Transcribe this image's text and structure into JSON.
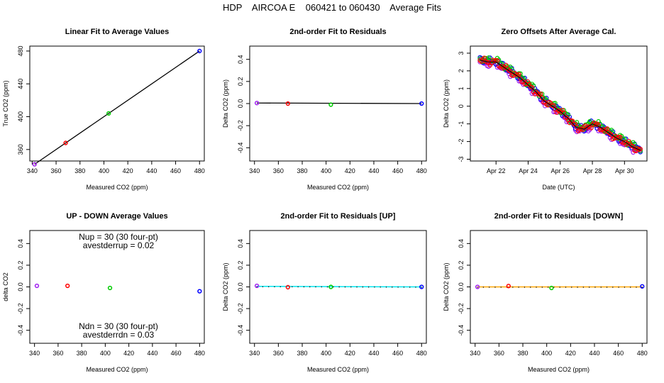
{
  "main_title": "HDP    AIRCOA E    060421 to 060430    Average Fits",
  "colors": {
    "purple": "#a020f0",
    "red": "#ff0000",
    "green": "#00cc00",
    "blue": "#0000ff",
    "black": "#000000",
    "cyan": "#00e5ee",
    "orange": "#ffa500"
  },
  "chart_data": [
    {
      "id": "p1",
      "type": "scatter",
      "title": "Linear Fit to Average Values",
      "xlabel": "Measured CO2 (ppm)",
      "ylabel": "True CO2 (ppm)",
      "xlim": [
        338,
        484
      ],
      "ylim": [
        346,
        486
      ],
      "xticks": [
        340,
        360,
        380,
        400,
        420,
        440,
        460,
        480
      ],
      "yticks": [
        360,
        400,
        440,
        480
      ],
      "points": [
        {
          "x": 342,
          "y": 342,
          "color": "purple"
        },
        {
          "x": 368,
          "y": 368,
          "color": "red"
        },
        {
          "x": 404,
          "y": 404,
          "color": "green"
        },
        {
          "x": 480,
          "y": 480,
          "color": "blue"
        }
      ],
      "fit_line": {
        "x": [
          342,
          480
        ],
        "y": [
          342,
          480
        ],
        "color": "black"
      }
    },
    {
      "id": "p2",
      "type": "scatter",
      "title": "2nd-order Fit to Residuals",
      "xlabel": "Measured CO2 (ppm)",
      "ylabel": "Delta CO2 (ppm)",
      "xlim": [
        336,
        484
      ],
      "ylim": [
        -0.52,
        0.52
      ],
      "xticks": [
        340,
        360,
        380,
        400,
        420,
        440,
        460,
        480
      ],
      "yticks": [
        -0.4,
        -0.2,
        0.0,
        0.2,
        0.4
      ],
      "points": [
        {
          "x": 342,
          "y": 0.005,
          "color": "purple"
        },
        {
          "x": 368,
          "y": 0.0,
          "color": "red"
        },
        {
          "x": 404,
          "y": -0.01,
          "color": "green"
        },
        {
          "x": 480,
          "y": 0.0,
          "color": "blue"
        }
      ],
      "fit_line": {
        "x": [
          342,
          480
        ],
        "y": [
          0.005,
          0.0
        ],
        "color": "black"
      }
    },
    {
      "id": "p3",
      "type": "scatter",
      "title": "Zero Offsets After Average Cal.",
      "xlabel": "Date (UTC)",
      "ylabel": "Delta CO2 (ppm)",
      "xlim": [
        20.4,
        31.4
      ],
      "ylim": [
        -3.1,
        3.4
      ],
      "xticks_labels": [
        "Apr 22",
        "Apr 24",
        "Apr 26",
        "Apr 28",
        "Apr 30"
      ],
      "xticks_pos": [
        22,
        24,
        26,
        28,
        30
      ],
      "yticks": [
        -3,
        -2,
        -1,
        0,
        1,
        2,
        3
      ],
      "trend": [
        [
          21,
          2.6
        ],
        [
          21.5,
          2.5
        ],
        [
          22,
          2.5
        ],
        [
          22.5,
          2.2
        ],
        [
          23,
          1.9
        ],
        [
          23.5,
          1.6
        ],
        [
          24,
          1.2
        ],
        [
          24.5,
          0.8
        ],
        [
          25,
          0.3
        ],
        [
          25.5,
          0.0
        ],
        [
          26,
          -0.3
        ],
        [
          26.5,
          -0.7
        ],
        [
          27,
          -1.2
        ],
        [
          27.5,
          -1.3
        ],
        [
          28,
          -1.0
        ],
        [
          28.5,
          -1.2
        ],
        [
          29,
          -1.5
        ],
        [
          29.5,
          -1.8
        ],
        [
          30,
          -2.0
        ],
        [
          30.5,
          -2.3
        ],
        [
          31,
          -2.5
        ]
      ]
    },
    {
      "id": "p4",
      "type": "scatter",
      "title": "UP - DOWN Average Values",
      "xlabel": "Measured CO2 (ppm)",
      "ylabel": "delta CO2",
      "xlim": [
        336,
        484
      ],
      "ylim": [
        -0.52,
        0.52
      ],
      "xticks": [
        340,
        360,
        380,
        400,
        420,
        440,
        460,
        480
      ],
      "yticks": [
        -0.4,
        -0.2,
        0.0,
        0.2,
        0.4
      ],
      "points": [
        {
          "x": 342,
          "y": 0.01,
          "color": "purple"
        },
        {
          "x": 368,
          "y": 0.01,
          "color": "red"
        },
        {
          "x": 404,
          "y": -0.01,
          "color": "green"
        },
        {
          "x": 480,
          "y": -0.04,
          "color": "blue"
        }
      ],
      "annotations": {
        "up1": "Nup = 30 (30 four-pt)",
        "up2": "avestderrup =  0.02",
        "dn1": "Ndn = 30 (30 four-pt)",
        "dn2": "avestderrdn =  0.03"
      }
    },
    {
      "id": "p5",
      "type": "scatter",
      "title": "2nd-order Fit to Residuals [UP]",
      "xlabel": "Measured CO2 (ppm)",
      "ylabel": "Delta CO2 (ppm)",
      "xlim": [
        336,
        484
      ],
      "ylim": [
        -0.52,
        0.52
      ],
      "xticks": [
        340,
        360,
        380,
        400,
        420,
        440,
        460,
        480
      ],
      "yticks": [
        -0.4,
        -0.2,
        0.0,
        0.2,
        0.4
      ],
      "points": [
        {
          "x": 342,
          "y": 0.01,
          "color": "purple"
        },
        {
          "x": 368,
          "y": -0.003,
          "color": "red"
        },
        {
          "x": 404,
          "y": 0.0,
          "color": "green"
        },
        {
          "x": 480,
          "y": 0.0,
          "color": "blue"
        }
      ],
      "fit_line": {
        "x": [
          342,
          480
        ],
        "y": [
          0.005,
          0.0
        ],
        "color": "cyan"
      }
    },
    {
      "id": "p6",
      "type": "scatter",
      "title": "2nd-order Fit to Residuals [DOWN]",
      "xlabel": "Measured CO2 (ppm)",
      "ylabel": "Delta CO2 (ppm)",
      "xlim": [
        336,
        484
      ],
      "ylim": [
        -0.52,
        0.52
      ],
      "xticks": [
        340,
        360,
        380,
        400,
        420,
        440,
        460,
        480
      ],
      "yticks": [
        -0.4,
        -0.2,
        0.0,
        0.2,
        0.4
      ],
      "points": [
        {
          "x": 342,
          "y": 0.0,
          "color": "purple"
        },
        {
          "x": 368,
          "y": 0.008,
          "color": "red"
        },
        {
          "x": 404,
          "y": -0.01,
          "color": "green"
        },
        {
          "x": 480,
          "y": 0.005,
          "color": "blue"
        }
      ],
      "fit_line": {
        "x": [
          342,
          480
        ],
        "y": [
          0.0,
          0.0
        ],
        "color": "orange"
      }
    }
  ]
}
